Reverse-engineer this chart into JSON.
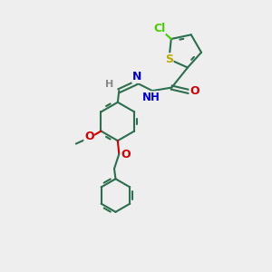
{
  "bg_color": "#eeeeee",
  "bond_color": "#2d6e4e",
  "bond_width": 1.5,
  "atom_colors": {
    "Cl": "#44cc00",
    "S": "#bbaa00",
    "N": "#0000cc",
    "O": "#cc0000",
    "H": "#888888"
  },
  "font_size": 8.5,
  "fig_w": 3.0,
  "fig_h": 3.0,
  "dpi": 100,
  "xlim": [
    0,
    10
  ],
  "ylim": [
    0,
    10
  ]
}
